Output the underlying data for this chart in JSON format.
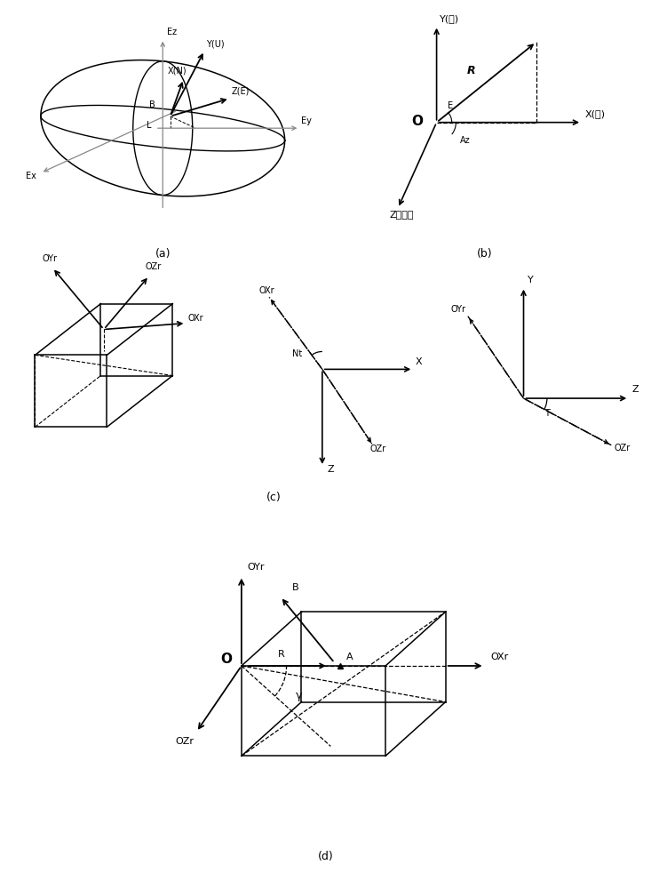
{
  "bg_color": "#ffffff",
  "panel_labels": [
    "(a)",
    "(b)",
    "(c)",
    "(d)"
  ],
  "font_size_small": 7,
  "font_size_med": 8,
  "font_size_large": 9,
  "font_size_xlarge": 11
}
